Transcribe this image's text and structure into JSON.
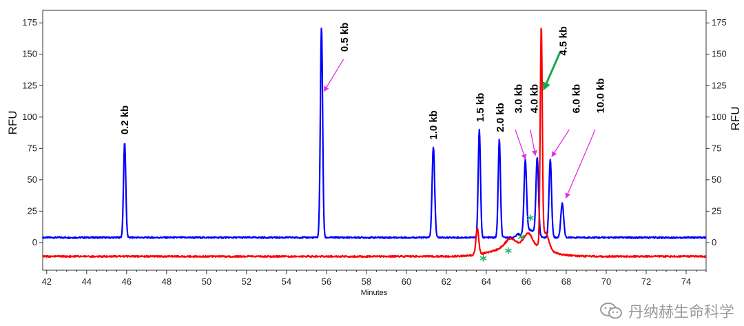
{
  "chart_data": {
    "type": "line",
    "xlabel": "Minutes",
    "ylabel_left": "RFU",
    "ylabel_right": "RFU",
    "xlim": [
      41.8,
      75
    ],
    "ylim": [
      -22,
      185
    ],
    "x_ticks": [
      42,
      44,
      46,
      48,
      50,
      52,
      54,
      56,
      58,
      60,
      62,
      64,
      66,
      68,
      70,
      72,
      74
    ],
    "y_ticks": [
      0,
      25,
      50,
      75,
      100,
      125,
      150,
      175
    ],
    "grid": false,
    "series": [
      {
        "color": "#0000ff",
        "baseline": 4,
        "peaks": [
          {
            "x": 45.9,
            "y": 80,
            "width": 0.08
          },
          {
            "x": 55.75,
            "y": 172,
            "width": 0.08
          },
          {
            "x": 61.35,
            "y": 76,
            "width": 0.09
          },
          {
            "x": 63.65,
            "y": 90,
            "width": 0.08
          },
          {
            "x": 64.65,
            "y": 82,
            "width": 0.08
          },
          {
            "x": 65.95,
            "y": 62,
            "width": 0.09
          },
          {
            "x": 66.55,
            "y": 66,
            "width": 0.09
          },
          {
            "x": 67.2,
            "y": 66,
            "width": 0.09
          },
          {
            "x": 67.8,
            "y": 31,
            "width": 0.1
          }
        ]
      },
      {
        "color": "#ff0000",
        "baseline": -11,
        "peaks": [
          {
            "x": 63.55,
            "y": 10,
            "width": 0.1
          },
          {
            "x": 66.75,
            "y": 160,
            "width": 0.07
          }
        ]
      }
    ],
    "size_labels": [
      {
        "text": "0.2 kb",
        "x": 45.9,
        "y": 86
      },
      {
        "text": "0.5 kb",
        "x": 56.9,
        "y": 152
      },
      {
        "text": "1.0 kb",
        "x": 61.35,
        "y": 82
      },
      {
        "text": "1.5 kb",
        "x": 63.7,
        "y": 96
      },
      {
        "text": "2.0 kb",
        "x": 64.7,
        "y": 88
      },
      {
        "text": "3.0 kb",
        "x": 65.6,
        "y": 103
      },
      {
        "text": "4.0 kb",
        "x": 66.4,
        "y": 103
      },
      {
        "text": "4.5 kb",
        "x": 67.85,
        "y": 149
      },
      {
        "text": "6.0 kb",
        "x": 68.5,
        "y": 103
      },
      {
        "text": "10.0 kb",
        "x": 69.7,
        "y": 103
      }
    ],
    "arrows": [
      {
        "color": "#e62ee6",
        "from": [
          56.85,
          146
        ],
        "to": [
          55.9,
          121
        ]
      },
      {
        "color": "#e62ee6",
        "from": [
          65.45,
          90
        ],
        "to": [
          65.95,
          67
        ]
      },
      {
        "color": "#e62ee6",
        "from": [
          66.2,
          90
        ],
        "to": [
          66.45,
          70
        ]
      },
      {
        "color": "#e62ee6",
        "from": [
          68.15,
          90
        ],
        "to": [
          67.3,
          69
        ]
      },
      {
        "color": "#e62ee6",
        "from": [
          69.45,
          90
        ],
        "to": [
          68.0,
          36
        ]
      },
      {
        "color": "#15a84b",
        "from": [
          67.7,
          152
        ],
        "to": [
          66.9,
          123
        ]
      }
    ],
    "asterisks": [
      {
        "x": 63.85,
        "y": -11
      },
      {
        "x": 65.1,
        "y": -5
      },
      {
        "x": 65.75,
        "y": 6
      },
      {
        "x": 66.2,
        "y": 21
      }
    ]
  },
  "watermark": {
    "text": "丹纳赫生命科学"
  }
}
